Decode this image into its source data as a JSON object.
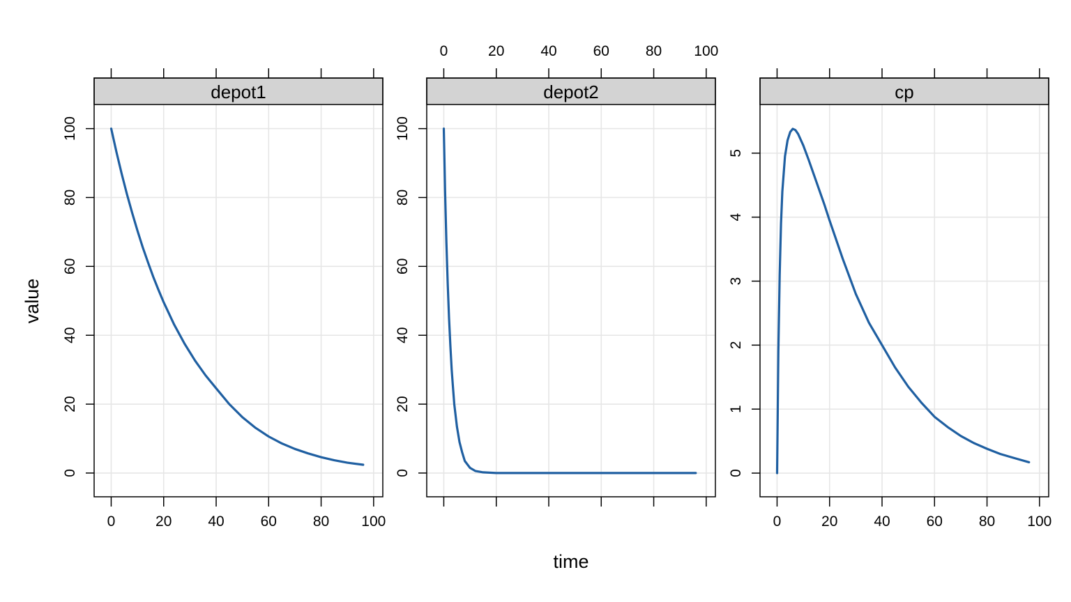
{
  "chart_data": {
    "type": "line",
    "layout": "trellis panels side by side",
    "xlabel": "time",
    "ylabel": "value",
    "xlim": [
      -6.5,
      103.5
    ],
    "x_ticks": [
      0,
      20,
      40,
      60,
      80,
      100
    ],
    "grid": true,
    "line_color": "#1f5fa1",
    "strip_color": "#d3d3d3",
    "grid_color": "#e6e6e6",
    "panels": [
      {
        "name": "depot1",
        "ylim": [
          -6.9,
          107
        ],
        "y_ticks": [
          0,
          20,
          40,
          60,
          80,
          100
        ],
        "x_axis": "bottom",
        "series": [
          {
            "x": [
              0,
              2,
              4,
              6,
              8,
              10,
              12,
              14,
              16,
              18,
              20,
              24,
              28,
              32,
              36,
              40,
              45,
              50,
              55,
              60,
              65,
              70,
              75,
              80,
              85,
              90,
              96
            ],
            "values": [
              100,
              93.2,
              86.9,
              81.0,
              75.5,
              70.4,
              65.6,
              61.2,
              57.0,
              53.2,
              49.6,
              43.1,
              37.5,
              32.6,
              28.3,
              24.6,
              20.0,
              16.2,
              13.1,
              10.6,
              8.6,
              7.0,
              5.7,
              4.6,
              3.7,
              3.0,
              2.4
            ]
          }
        ]
      },
      {
        "name": "depot2",
        "ylim": [
          -6.9,
          107
        ],
        "y_ticks": [
          0,
          20,
          40,
          60,
          80,
          100
        ],
        "x_axis": "top",
        "series": [
          {
            "x": [
              0,
              0.5,
              1,
              1.5,
              2,
              2.5,
              3,
              3.5,
              4,
              5,
              6,
              7,
              8,
              10,
              12,
              15,
              20,
              30,
              40,
              60,
              80,
              96
            ],
            "values": [
              100,
              82,
              67,
              55,
              45,
              37,
              30,
              25,
              20,
              13.5,
              9,
              6,
              3.5,
              1.5,
              0.6,
              0.2,
              0,
              0,
              0,
              0,
              0,
              0
            ]
          }
        ]
      },
      {
        "name": "cp",
        "ylim": [
          -0.37,
          5.76
        ],
        "y_ticks": [
          0,
          1,
          2,
          3,
          4,
          5
        ],
        "x_axis": "bottom",
        "series": [
          {
            "x": [
              0,
              0.5,
              1,
              1.5,
              2,
              3,
              4,
              5,
              6,
              7,
              8,
              10,
              12,
              15,
              18,
              20,
              25,
              30,
              35,
              40,
              45,
              50,
              55,
              60,
              65,
              70,
              75,
              80,
              85,
              90,
              96
            ],
            "values": [
              0,
              1.9,
              3.1,
              3.9,
              4.4,
              4.95,
              5.2,
              5.33,
              5.38,
              5.36,
              5.3,
              5.12,
              4.9,
              4.55,
              4.2,
              3.95,
              3.35,
              2.8,
              2.35,
              2.0,
              1.65,
              1.35,
              1.1,
              0.88,
              0.72,
              0.58,
              0.47,
              0.38,
              0.3,
              0.24,
              0.17
            ]
          }
        ]
      }
    ]
  }
}
